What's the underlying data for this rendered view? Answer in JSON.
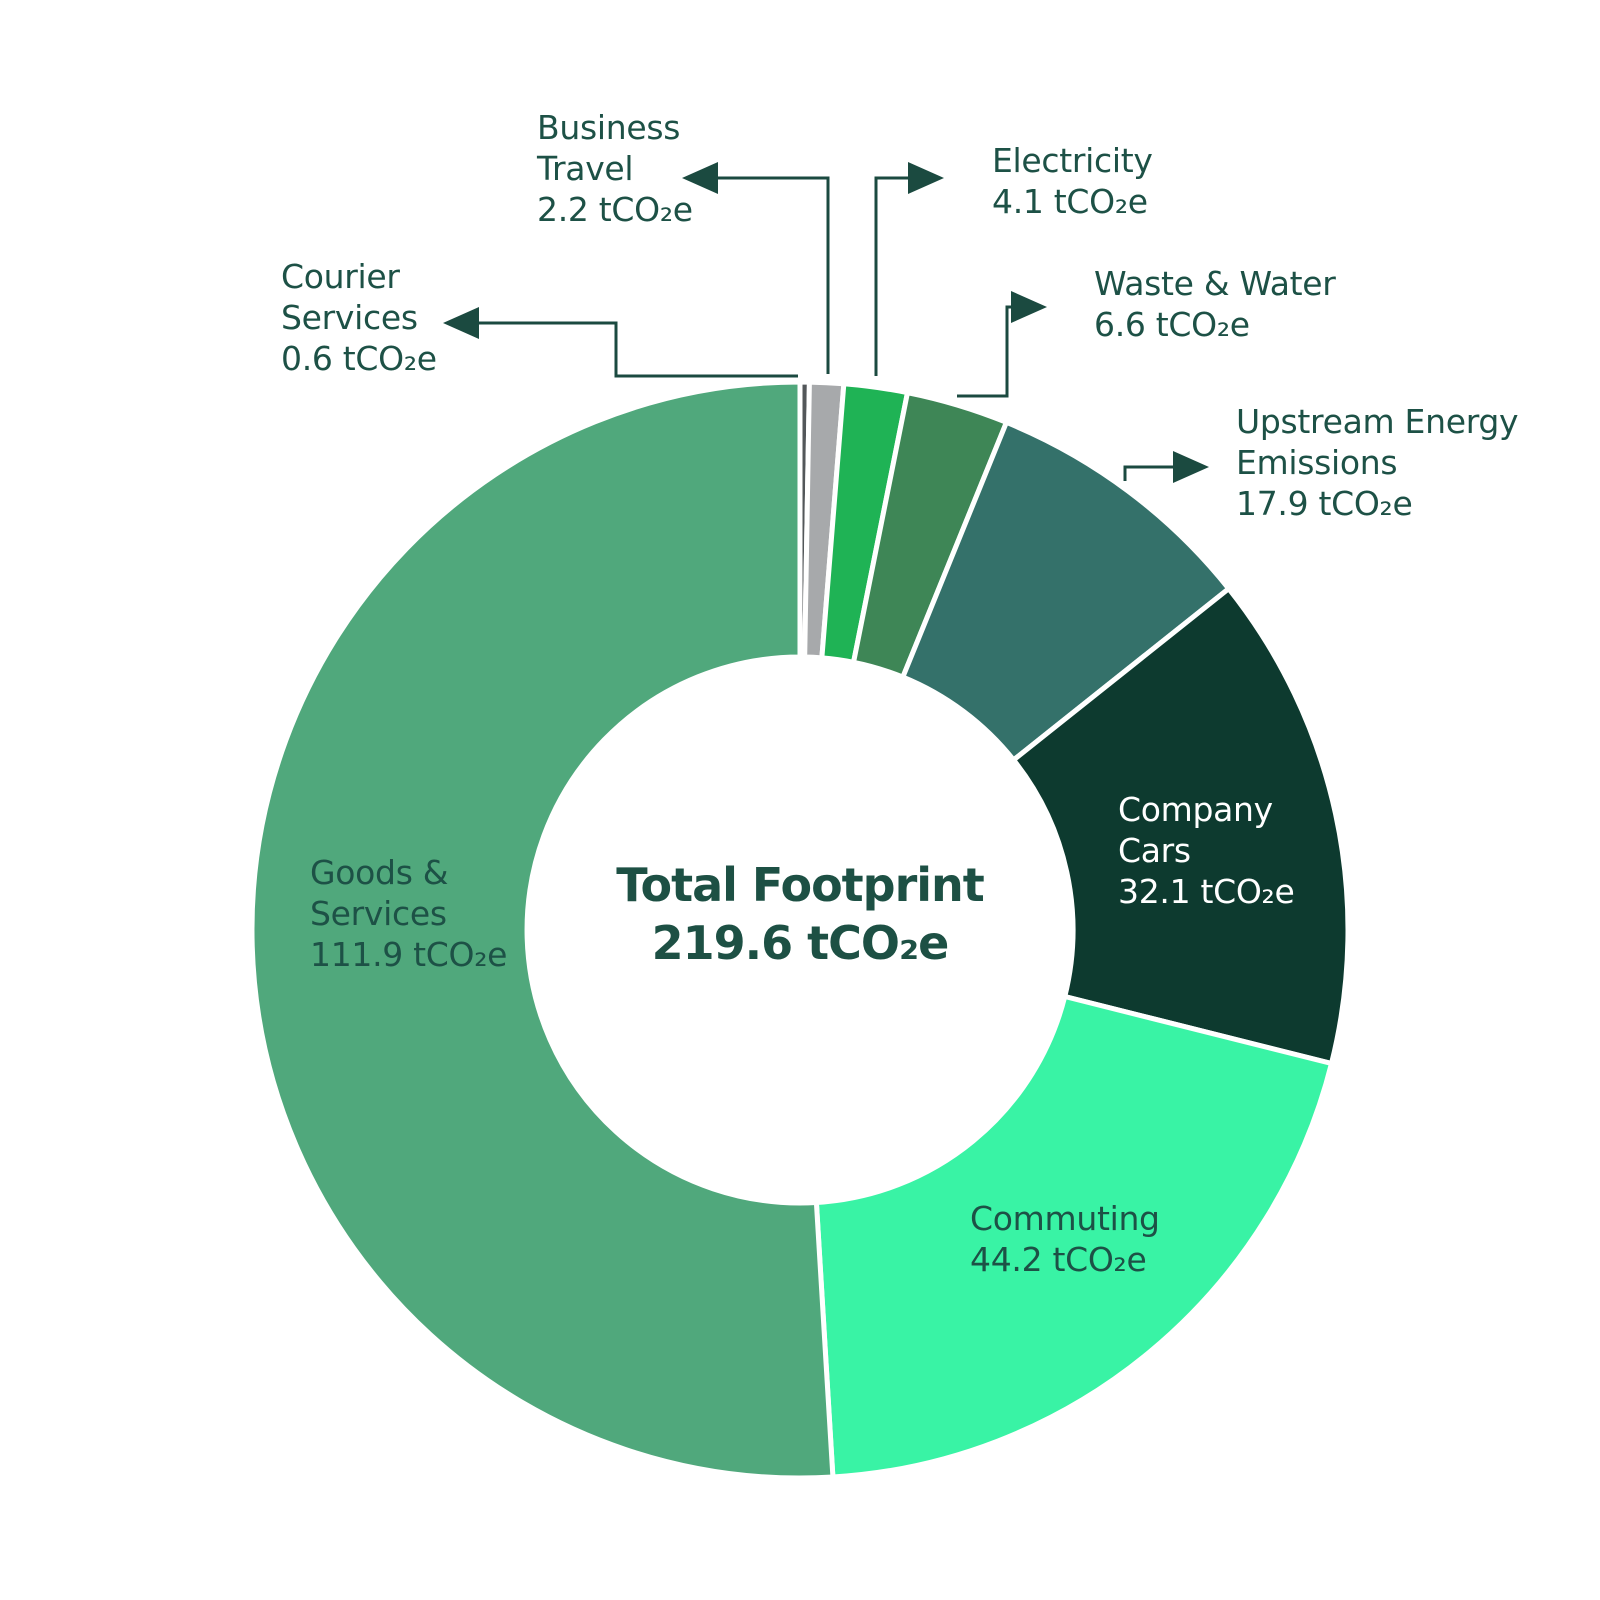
{
  "chart_data": {
    "type": "pie",
    "subtype": "donut",
    "title": "Total Footprint",
    "unit": "tCO₂e",
    "total": 219.6,
    "center_label": {
      "title": "Total Footprint",
      "value": "219.6 tCO₂e"
    },
    "start_at_top": true,
    "clockwise": true,
    "inner_radius_ratio": 0.5,
    "legend_position": "none",
    "slices": [
      {
        "id": "courier-services",
        "label": "Courier Services",
        "value": 0.6,
        "value_label": "0.6 tCO₂e",
        "color": "#53575A"
      },
      {
        "id": "business-travel",
        "label": "Business Travel",
        "value": 2.2,
        "value_label": "2.2 tCO₂e",
        "color": "#A7A9AB"
      },
      {
        "id": "electricity",
        "label": "Electricity",
        "value": 4.1,
        "value_label": "4.1 tCO₂e",
        "color": "#1FB355"
      },
      {
        "id": "waste-water",
        "label": "Waste & Water",
        "value": 6.6,
        "value_label": "6.6 tCO₂e",
        "color": "#3E8656"
      },
      {
        "id": "upstream-energy",
        "label": "Upstream Energy Emissions",
        "value": 17.9,
        "value_label": "17.9 tCO₂e",
        "color": "#34716A"
      },
      {
        "id": "company-cars",
        "label": "Company Cars",
        "value": 32.1,
        "value_label": "32.1 tCO₂e",
        "color": "#0D3A2F"
      },
      {
        "id": "commuting",
        "label": "Commuting",
        "value": 44.2,
        "value_label": "44.2 tCO₂e",
        "color": "#39F3A5"
      },
      {
        "id": "goods-services",
        "label": "Goods & Services",
        "value": 111.9,
        "value_label": "111.9 tCO₂e",
        "color": "#50A87C"
      }
    ],
    "colors": {
      "text": "#1D5146",
      "connector": "#1B4A40",
      "background": "#FFFFFF",
      "slice_gap_stroke": "#FFFFFF"
    }
  },
  "labels": {
    "business_travel": {
      "name": "Business\nTravel",
      "value": "2.2 tCO₂e"
    },
    "electricity": {
      "name": "Electricity",
      "value": "4.1 tCO₂e"
    },
    "courier_services": {
      "name": "Courier\nServices",
      "value": "0.6 tCO₂e"
    },
    "waste_water": {
      "name": "Waste & Water",
      "value": "6.6 tCO₂e"
    },
    "upstream_energy": {
      "name": "Upstream Energy\nEmissions",
      "value": "17.9 tCO₂e"
    },
    "company_cars": {
      "name": "Company\nCars",
      "value": "32.1 tCO₂e"
    },
    "commuting": {
      "name": "Commuting",
      "value": "44.2 tCO₂e"
    },
    "goods_services": {
      "name": "Goods &\nServices",
      "value": "111.9 tCO₂e"
    },
    "center": {
      "title": "Total Footprint",
      "value": "219.6 tCO₂e"
    }
  }
}
